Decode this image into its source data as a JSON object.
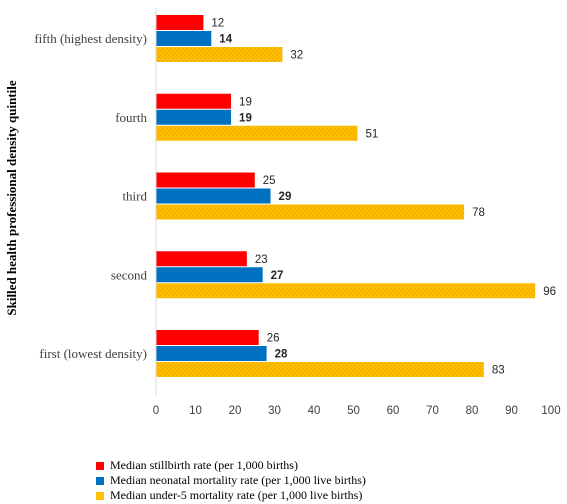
{
  "chart_data": {
    "type": "bar",
    "orientation": "horizontal",
    "ylabel": "Skilled health professional density quintile",
    "xlabel": "",
    "xlim": [
      0,
      100
    ],
    "xticks": [
      "0",
      "10",
      "20",
      "30",
      "40",
      "50",
      "60",
      "70",
      "80",
      "90",
      "100"
    ],
    "categories": [
      "fifth (highest density)",
      "fourth",
      "third",
      "second",
      "first (lowest density)"
    ],
    "series": [
      {
        "name": "Median stillbirth rate (per 1,000 births)",
        "color": "#ff0000",
        "values": [
          12,
          19,
          25,
          23,
          26
        ],
        "label_bold": false
      },
      {
        "name": "Median neonatal mortality rate (per 1,000 live births)",
        "color": "#0070c0",
        "values": [
          14,
          19,
          29,
          27,
          28
        ],
        "label_bold": true
      },
      {
        "name": "Median under-5 mortality rate (per 1,000 live births)",
        "color": "#ffc000",
        "values": [
          32,
          51,
          78,
          96,
          83
        ],
        "label_bold": false
      }
    ],
    "legend_position": "bottom-left",
    "grid": false
  }
}
